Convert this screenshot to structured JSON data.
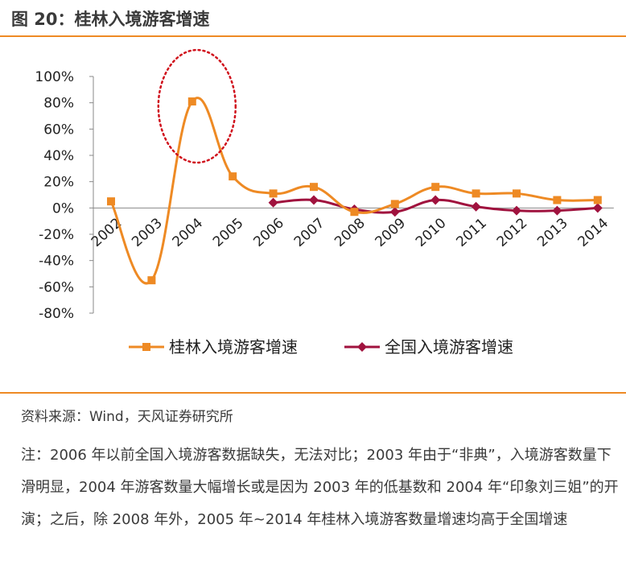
{
  "header": {
    "title": "图 20：桂林入境游客增速"
  },
  "chart_data": {
    "type": "line",
    "title": "桂林入境游客增速",
    "categories": [
      "2002",
      "2003",
      "2004",
      "2005",
      "2006",
      "2007",
      "2008",
      "2009",
      "2010",
      "2011",
      "2012",
      "2013",
      "2014"
    ],
    "yticks": [
      "100%",
      "80%",
      "60%",
      "40%",
      "20%",
      "0%",
      "-20%",
      "-40%",
      "-60%",
      "-80%"
    ],
    "ylim": [
      -80,
      100
    ],
    "series": [
      {
        "name": "桂林入境游客增速",
        "color": "#ee8a24",
        "marker": "square",
        "values": [
          5,
          -55,
          81,
          24,
          11,
          16,
          -3,
          3,
          16,
          11,
          11,
          6,
          6
        ]
      },
      {
        "name": "全国入境游客增速",
        "color": "#a0123e",
        "marker": "diamond",
        "values": [
          null,
          null,
          null,
          null,
          4,
          6,
          -1,
          -3,
          6,
          1,
          -2,
          -2,
          0
        ]
      }
    ],
    "legend": "bottom",
    "annotation": {
      "type": "dotted-ellipse",
      "target_category": "2004"
    }
  },
  "source": "资料来源：Wind，天风证券研究所",
  "note": "注：2006 年以前全国入境游客数据缺失，无法对比；2003 年由于“非典”，入境游客数量下滑明显，2004 年游客数量大幅增长或是因为 2003 年的低基数和 2004 年“印象刘三姐”的开演；之后，除 2008 年外，2005 年~2014 年桂林入境游客数量增速均高于全国增速"
}
